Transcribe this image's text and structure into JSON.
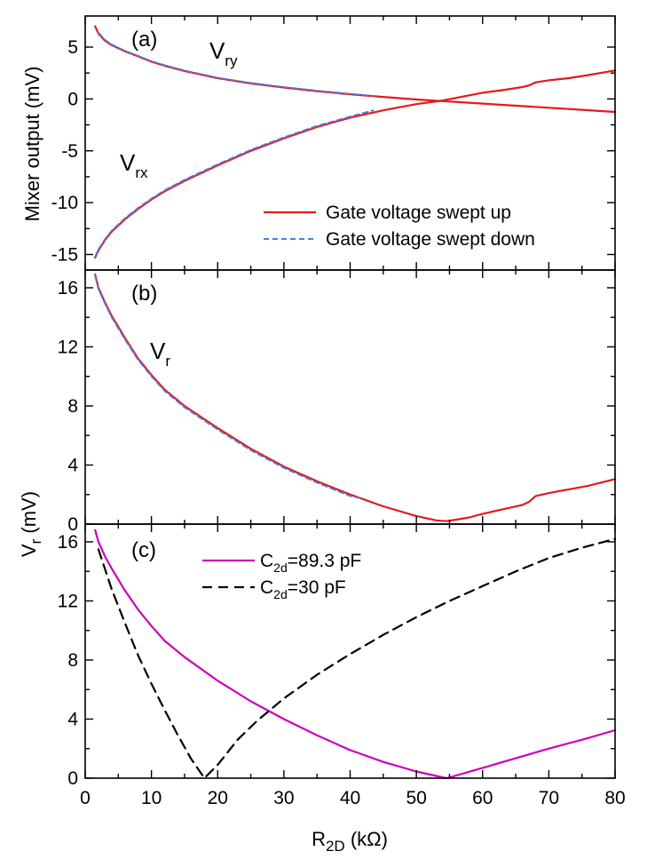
{
  "chart_data": [
    {
      "panel": "a",
      "panel_label": "(a)",
      "type": "line",
      "ylabel": "Mixer output (mV)",
      "xlim": [
        0,
        80
      ],
      "ylim": [
        -16.5,
        8
      ],
      "yticks": [
        5,
        0,
        -5,
        -10,
        -15
      ],
      "ytick_labels": [
        "5",
        "0",
        "-5",
        "-10",
        "-15"
      ],
      "annotations": [
        {
          "main": "V",
          "sub": "ry",
          "x": 18,
          "y": 4.2
        },
        {
          "main": "V",
          "sub": "rx",
          "x": 5,
          "y": -7.0
        }
      ],
      "legend": {
        "position": "lower-right",
        "entries": [
          {
            "label": "Gate voltage swept up",
            "color": "#e41a1c",
            "style": "solid"
          },
          {
            "label": "Gate voltage swept down",
            "color": "#4a7fe0",
            "style": "dashed"
          }
        ]
      },
      "series": [
        {
          "name": "Vry swept up",
          "color": "#e41a1c",
          "style": "solid",
          "x": [
            1.5,
            2,
            3,
            4,
            6,
            8,
            10,
            12,
            15,
            20,
            25,
            30,
            35,
            40,
            45,
            50,
            55,
            60,
            65,
            70,
            75,
            80
          ],
          "y": [
            7.0,
            6.3,
            5.6,
            5.2,
            4.6,
            4.1,
            3.6,
            3.2,
            2.7,
            2.0,
            1.5,
            1.1,
            0.75,
            0.45,
            0.2,
            -0.05,
            -0.25,
            -0.45,
            -0.65,
            -0.85,
            -1.05,
            -1.25
          ]
        },
        {
          "name": "Vry swept down",
          "color": "#4a7fe0",
          "style": "dashed",
          "x": [
            2,
            3,
            4,
            6,
            8,
            10,
            12,
            15,
            20,
            25,
            30,
            35,
            40,
            43.5
          ],
          "y": [
            6.4,
            5.7,
            5.25,
            4.65,
            4.15,
            3.65,
            3.25,
            2.75,
            2.05,
            1.55,
            1.15,
            0.8,
            0.5,
            0.3
          ]
        },
        {
          "name": "Vrx swept up",
          "color": "#e41a1c",
          "style": "solid",
          "x": [
            1.5,
            2,
            3,
            4,
            6,
            8,
            10,
            12,
            15,
            20,
            25,
            30,
            35,
            40,
            45,
            50,
            54,
            56,
            58,
            60,
            63,
            66,
            67,
            68,
            70,
            73,
            76,
            80
          ],
          "y": [
            -15.3,
            -14.6,
            -13.6,
            -12.8,
            -11.6,
            -10.6,
            -9.7,
            -8.9,
            -7.9,
            -6.4,
            -5.0,
            -3.8,
            -2.7,
            -1.8,
            -1.1,
            -0.5,
            -0.15,
            0.1,
            0.35,
            0.6,
            0.85,
            1.15,
            1.3,
            1.6,
            1.8,
            2.0,
            2.3,
            2.75
          ]
        },
        {
          "name": "Vrx swept down",
          "color": "#4a7fe0",
          "style": "dashed",
          "x": [
            1.5,
            2,
            3,
            4,
            6,
            8,
            10,
            12,
            15,
            20,
            25,
            30,
            35,
            40,
            43.5
          ],
          "y": [
            -15.2,
            -14.5,
            -13.5,
            -12.7,
            -11.5,
            -10.5,
            -9.6,
            -8.8,
            -7.8,
            -6.3,
            -4.9,
            -3.7,
            -2.6,
            -1.7,
            -1.1
          ]
        }
      ]
    },
    {
      "panel": "b",
      "panel_label": "(b)",
      "type": "line",
      "ylabel": "",
      "xlim": [
        0,
        80
      ],
      "ylim": [
        0,
        17.2
      ],
      "yticks": [
        16,
        12,
        8,
        4,
        0
      ],
      "ytick_labels": [
        "16",
        "12",
        "8",
        "4",
        "0"
      ],
      "annotations": [
        {
          "main": "V",
          "sub": "r",
          "x": 9.5,
          "y": 12.0
        }
      ],
      "series": [
        {
          "name": "Vr swept up",
          "color": "#e41a1c",
          "style": "solid",
          "x": [
            1.5,
            2,
            3,
            4,
            6,
            8,
            10,
            12,
            15,
            20,
            25,
            30,
            35,
            40,
            45,
            50,
            53,
            54.5,
            56,
            58,
            60,
            63,
            66,
            67,
            68,
            70,
            73,
            76,
            80
          ],
          "y": [
            16.9,
            16.0,
            15.0,
            14.1,
            12.6,
            11.2,
            10.1,
            9.1,
            8.0,
            6.5,
            5.1,
            3.9,
            2.9,
            2.0,
            1.2,
            0.55,
            0.25,
            0.2,
            0.3,
            0.45,
            0.7,
            1.0,
            1.3,
            1.5,
            1.9,
            2.1,
            2.35,
            2.6,
            3.05
          ]
        },
        {
          "name": "Vr swept down",
          "color": "#4a7fe0",
          "style": "dashed",
          "x": [
            1.5,
            2,
            3,
            4,
            6,
            8,
            10,
            12,
            15,
            20,
            25,
            30,
            35,
            40,
            41.5
          ],
          "y": [
            16.8,
            15.9,
            14.9,
            14.0,
            12.5,
            11.1,
            10.0,
            9.0,
            7.9,
            6.4,
            5.0,
            3.8,
            2.8,
            1.9,
            1.75
          ]
        }
      ]
    },
    {
      "panel": "c",
      "panel_label": "(c)",
      "type": "line",
      "ylabel": "",
      "shared_ylabel_main": "V",
      "shared_ylabel_sub": "r",
      "shared_ylabel_unit": " (mV)",
      "xlabel_main": "R",
      "xlabel_sub": "2D",
      "xlabel_unit": " (kΩ)",
      "xlim": [
        0,
        80
      ],
      "ylim": [
        0,
        17.2
      ],
      "xticks": [
        0,
        10,
        20,
        30,
        40,
        50,
        60,
        70,
        80
      ],
      "xtick_labels": [
        "0",
        "10",
        "20",
        "30",
        "40",
        "50",
        "60",
        "70",
        "80"
      ],
      "yticks": [
        16,
        12,
        8,
        4,
        0
      ],
      "ytick_labels": [
        "16",
        "12",
        "8",
        "4",
        "0"
      ],
      "legend": {
        "position": "top-center",
        "entries": [
          {
            "prefix": "C",
            "sub": "2d",
            "suffix": "=89.3 pF",
            "color": "#cc00bb",
            "style": "solid"
          },
          {
            "prefix": "C",
            "sub": "2d",
            "suffix": "=30 pF",
            "color": "#000000",
            "style": "dashed"
          }
        ]
      },
      "series": [
        {
          "name": "C2d=89.3 pF",
          "color": "#cc00bb",
          "style": "solid",
          "x": [
            1.5,
            2,
            3,
            4,
            6,
            8,
            10,
            12,
            15,
            20,
            25,
            30,
            35,
            40,
            45,
            50,
            54.5,
            55,
            60,
            65,
            70,
            75,
            80
          ],
          "y": [
            16.8,
            16.0,
            15.0,
            14.2,
            12.7,
            11.4,
            10.3,
            9.3,
            8.2,
            6.6,
            5.2,
            4.0,
            2.9,
            1.9,
            1.1,
            0.45,
            0.0,
            0.05,
            0.7,
            1.35,
            2.0,
            2.6,
            3.25
          ]
        },
        {
          "name": "C2d=30 pF",
          "color": "#000000",
          "style": "dashed",
          "x": [
            2,
            4,
            6,
            8,
            10,
            12,
            14,
            16,
            18,
            20,
            23,
            26,
            30,
            35,
            40,
            45,
            50,
            55,
            60,
            65,
            70,
            75,
            80
          ],
          "y": [
            15.5,
            12.8,
            10.5,
            8.3,
            6.4,
            4.6,
            2.9,
            1.3,
            0.0,
            0.9,
            2.6,
            3.9,
            5.4,
            7.0,
            8.4,
            9.7,
            10.9,
            12.0,
            13.0,
            14.0,
            14.9,
            15.6,
            16.2
          ]
        }
      ]
    }
  ]
}
